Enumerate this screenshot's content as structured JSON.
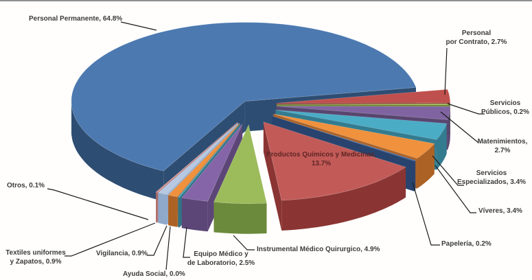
{
  "chart_data": {
    "type": "pie",
    "style": "3d-exploded",
    "unit": "%",
    "legend": "none",
    "title": "",
    "slices": [
      {
        "label": "Personal Permanente",
        "value": 64.8,
        "color": "#4C79B0",
        "side_color": "#2E4D72",
        "callout": "Personal Permanente, 64.8%"
      },
      {
        "label": "Personal por Contrato",
        "value": 2.7,
        "color": "#C0504D",
        "side_color": "#8A3533",
        "callout": "Personal\npor Contrato, 2.7%"
      },
      {
        "label": "Servicios Públicos",
        "value": 0.2,
        "color": "#B5C952",
        "side_color": "#6E8639",
        "callout": "Servicios\nPúblicos, 0.2%"
      },
      {
        "label": "Matenimientos",
        "value": 2.7,
        "color": "#8064A2",
        "side_color": "#594670",
        "callout": "Matenimientos,\n2.7%"
      },
      {
        "label": "Servicios Especializados",
        "value": 3.4,
        "color": "#4BACC6",
        "side_color": "#337C90",
        "callout": "Servicios\nEspecializados, 3.4%"
      },
      {
        "label": "Víveres",
        "value": 3.4,
        "color": "#F0913D",
        "side_color": "#AD6225",
        "callout": "Víveres, 3.4%"
      },
      {
        "label": "Papelería",
        "value": 0.2,
        "color": "#3C64A0",
        "side_color": "#27436E",
        "callout": "Papelería, 0.2%"
      },
      {
        "label": "Productos Químicos y Medicinas",
        "value": 13.7,
        "color": "#C25B58",
        "side_color": "#8A3533",
        "callout": "Productos Químicos y Medicinas,\n13.7%"
      },
      {
        "label": "Instrumental Médico Quirurgico",
        "value": 4.9,
        "color": "#9CBC5C",
        "side_color": "#6C8A3B",
        "callout": "Instrumental Médico Quirurgico, 4.9%"
      },
      {
        "label": "Equipo Médico y de Laboratorio",
        "value": 2.5,
        "color": "#8565A7",
        "side_color": "#5C4677",
        "callout": "Equipo Médico y\nde Laboratorio, 2.5%"
      },
      {
        "label": "Ayuda Social",
        "value": 0.0,
        "color": "#45A5BF",
        "side_color": "#2F7487",
        "callout": "Ayuda Social, 0.0%"
      },
      {
        "label": "Vigilancia",
        "value": 0.9,
        "color": "#F0913D",
        "side_color": "#AD6225",
        "callout": "Vigilancia, 0.9%"
      },
      {
        "label": "Textiles uniformes y Zapatos",
        "value": 0.9,
        "color": "#B6C8E2",
        "side_color": "#8FA9CB",
        "callout": "Textiles uniformes\ny Zapatos, 0.9%"
      },
      {
        "label": "Otros",
        "value": 0.1,
        "color": "#D99694",
        "side_color": "#B06A68",
        "callout": "Otros, 0.1%"
      }
    ]
  }
}
